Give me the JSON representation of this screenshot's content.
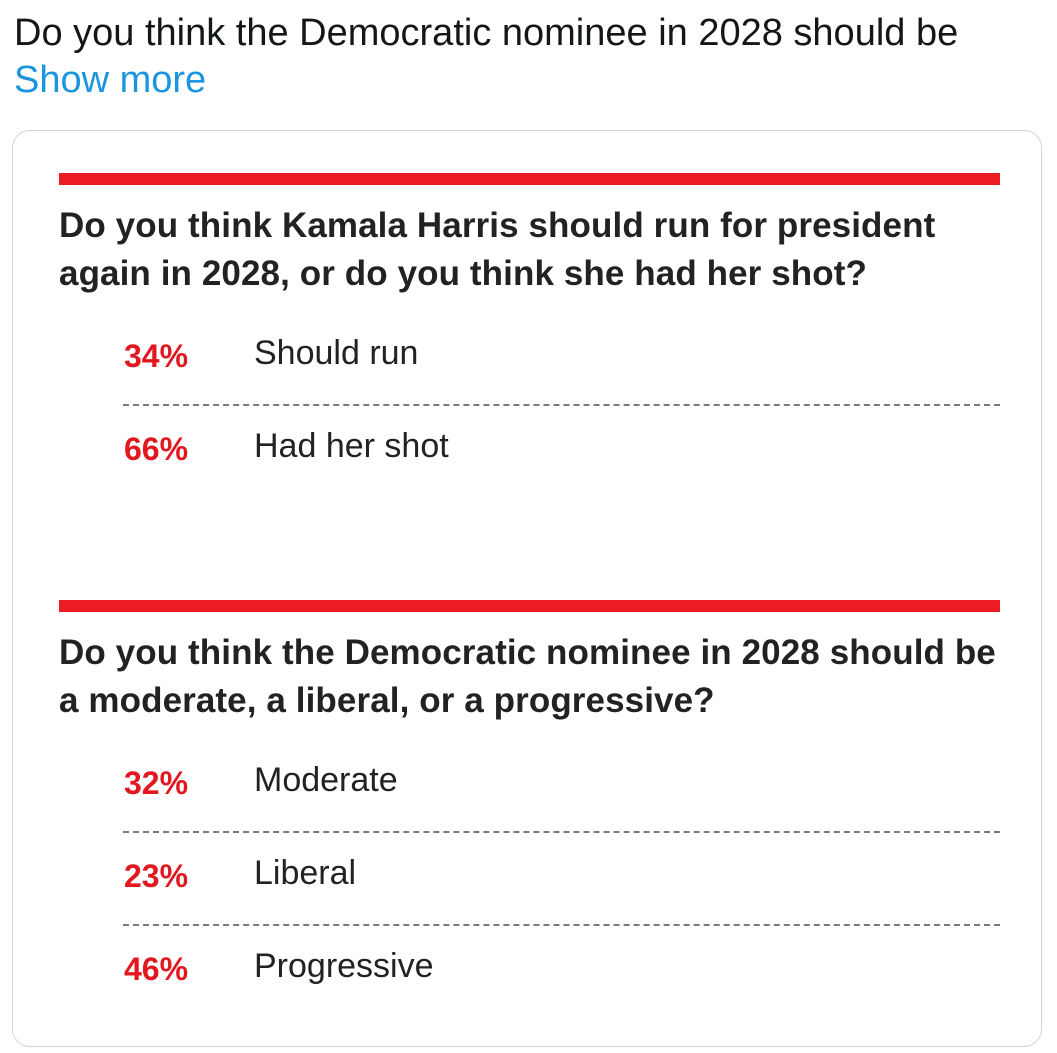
{
  "tweet": {
    "text": "Do you think the Democratic nominee in 2028 should be",
    "show_more_label": "Show more",
    "link_color": "#1b95e0"
  },
  "card": {
    "accent_color": "#ec1c24",
    "questions": [
      {
        "question": "Do you think Kamala Harris should run for president again in 2028, or do you think she had her shot?",
        "answers": [
          {
            "percent": "34%",
            "label": "Should run"
          },
          {
            "percent": "66%",
            "label": "Had her shot"
          }
        ]
      },
      {
        "question": "Do you think the Democratic nominee in 2028 should be a moderate, a liberal, or a progressive?",
        "answers": [
          {
            "percent": "32%",
            "label": "Moderate"
          },
          {
            "percent": "23%",
            "label": "Liberal"
          },
          {
            "percent": "46%",
            "label": "Progressive"
          }
        ]
      }
    ]
  }
}
